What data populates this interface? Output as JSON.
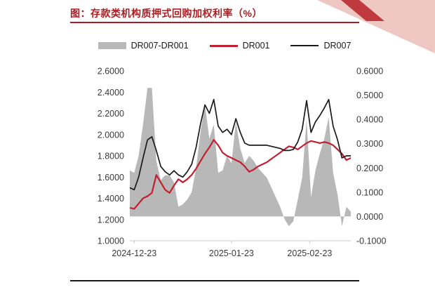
{
  "page": {
    "title": "图：存款类机构质押式回购加权利率（%）"
  },
  "chart_data": {
    "type": "combo-area-line",
    "title": "存款类机构质押式回购加权利率（%）",
    "legend_position": "top-center",
    "grid": "off",
    "x_dates": [
      "2024-12-20",
      "2024-12-23",
      "2024-12-24",
      "2024-12-25",
      "2024-12-26",
      "2024-12-27",
      "2024-12-30",
      "2024-12-31",
      "2025-01-02",
      "2025-01-03",
      "2025-01-06",
      "2025-01-07",
      "2025-01-08",
      "2025-01-09",
      "2025-01-10",
      "2025-01-13",
      "2025-01-14",
      "2025-01-15",
      "2025-01-16",
      "2025-01-17",
      "2025-01-20",
      "2025-01-21",
      "2025-01-22",
      "2025-01-23",
      "2025-01-24",
      "2025-01-26",
      "2025-01-27",
      "2025-02-05",
      "2025-02-06",
      "2025-02-07",
      "2025-02-08",
      "2025-02-10",
      "2025-02-11",
      "2025-02-12",
      "2025-02-13",
      "2025-02-14",
      "2025-02-17",
      "2025-02-18",
      "2025-02-19",
      "2025-02-20",
      "2025-02-21",
      "2025-02-24",
      "2025-02-25",
      "2025-02-26",
      "2025-02-27",
      "2025-02-28",
      "2025-03-03",
      "2025-03-04",
      "2025-03-05",
      "2025-03-06",
      "2025-03-07"
    ],
    "series": [
      {
        "name": "DR007-DR001",
        "kind": "area",
        "axis": "right",
        "color": "#b8b8b8",
        "values": [
          0.19,
          0.18,
          0.25,
          0.38,
          0.53,
          0.53,
          0.23,
          0.15,
          0.17,
          0.17,
          0.14,
          0.04,
          0.05,
          0.07,
          0.1,
          0.2,
          0.35,
          0.46,
          0.32,
          0.38,
          0.18,
          0.19,
          0.25,
          0.22,
          0.39,
          0.28,
          0.22,
          0.25,
          0.23,
          0.2,
          0.18,
          0.16,
          0.12,
          0.08,
          0.04,
          -0.01,
          -0.04,
          -0.02,
          0.07,
          0.16,
          0.4,
          0.08,
          0.19,
          0.26,
          0.32,
          0.41,
          0.18,
          0.09,
          -0.04,
          0.04,
          0.02
        ]
      },
      {
        "name": "DR001",
        "kind": "line",
        "axis": "left",
        "color": "#c21f30",
        "values": [
          1.31,
          1.3,
          1.35,
          1.4,
          1.42,
          1.45,
          1.62,
          1.55,
          1.48,
          1.45,
          1.52,
          1.58,
          1.55,
          1.58,
          1.62,
          1.68,
          1.75,
          1.82,
          1.88,
          1.95,
          1.9,
          1.83,
          1.8,
          1.78,
          1.76,
          1.74,
          1.7,
          1.65,
          1.67,
          1.7,
          1.72,
          1.74,
          1.77,
          1.8,
          1.83,
          1.86,
          1.89,
          1.88,
          1.86,
          1.89,
          1.92,
          1.94,
          1.93,
          1.92,
          1.93,
          1.92,
          1.9,
          1.86,
          1.82,
          1.76,
          1.78
        ]
      },
      {
        "name": "DR007",
        "kind": "line",
        "axis": "left",
        "color": "#1a1a1a",
        "values": [
          1.5,
          1.48,
          1.6,
          1.78,
          1.95,
          1.98,
          1.85,
          1.7,
          1.65,
          1.62,
          1.66,
          1.62,
          1.6,
          1.65,
          1.72,
          1.88,
          2.1,
          2.28,
          2.2,
          2.33,
          2.08,
          2.02,
          2.05,
          2.0,
          2.15,
          2.02,
          1.92,
          1.9,
          1.9,
          1.9,
          1.9,
          1.9,
          1.89,
          1.88,
          1.87,
          1.85,
          1.85,
          1.86,
          1.93,
          2.05,
          2.32,
          2.02,
          2.12,
          2.18,
          2.25,
          2.33,
          2.08,
          1.95,
          1.78,
          1.8,
          1.8
        ]
      }
    ],
    "left_axis": {
      "min": 1.0,
      "max": 2.6,
      "labels": [
        "2.6000",
        "2.4000",
        "2.2000",
        "2.0000",
        "1.8000",
        "1.6000",
        "1.4000",
        "1.2000",
        "1.0000"
      ]
    },
    "right_axis": {
      "min": -0.1,
      "max": 0.6,
      "labels": [
        "0.6000",
        "0.5000",
        "0.4000",
        "0.3000",
        "0.2000",
        "0.1000",
        "0.0000",
        "-0.1000"
      ]
    },
    "x_ticks": [
      {
        "label": "2024-12-23",
        "index": 1
      },
      {
        "label": "2025-01-23",
        "index": 23
      },
      {
        "label": "2025-02-23",
        "index": 40.7
      }
    ]
  }
}
